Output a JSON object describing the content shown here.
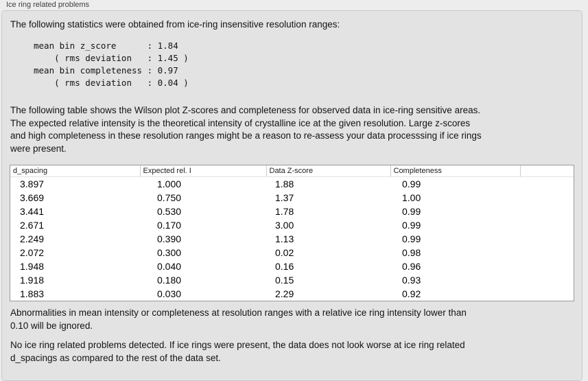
{
  "panel": {
    "title": "Ice ring related problems",
    "intro": "The following statistics were obtained from ice-ring insensitive resolution ranges:",
    "stats_lines": [
      "mean bin z_score      : 1.84",
      "    ( rms deviation   : 1.45 )",
      "mean bin completeness : 0.97",
      "    ( rms deviation   : 0.04 )"
    ],
    "description_lines": [
      "The following table shows the Wilson plot Z-scores and completeness for observed data in ice-ring sensitive areas.",
      "The expected relative intensity is the theoretical intensity of crystalline ice at the given resolution. Large z-scores",
      "and high completeness in these resolution ranges might be a reason to re-assess your data processsing if ice rings",
      "were present."
    ],
    "abnormalities_lines": [
      "Abnormalities in mean intensity or completeness at resolution ranges with a relative ice ring intensity lower than",
      "0.10 will be ignored."
    ],
    "conclusion_lines": [
      "No ice ring related problems detected. If ice rings were present, the data does not look worse at ice ring related",
      "d_spacings as compared to the rest of the data set."
    ]
  },
  "table": {
    "columns": [
      "d_spacing",
      "Expected rel. I",
      "Data Z-score",
      "Completeness",
      ""
    ],
    "rows": [
      [
        "3.897",
        "1.000",
        "1.88",
        "0.99"
      ],
      [
        "3.669",
        "0.750",
        "1.37",
        "1.00"
      ],
      [
        "3.441",
        "0.530",
        "1.78",
        "0.99"
      ],
      [
        "2.671",
        "0.170",
        "3.00",
        "0.99"
      ],
      [
        "2.249",
        "0.390",
        "1.13",
        "0.99"
      ],
      [
        "2.072",
        "0.300",
        "0.02",
        "0.98"
      ],
      [
        "1.948",
        "0.040",
        "0.16",
        "0.96"
      ],
      [
        "1.918",
        "0.180",
        "0.15",
        "0.93"
      ],
      [
        "1.883",
        "0.030",
        "2.29",
        "0.92"
      ]
    ]
  }
}
